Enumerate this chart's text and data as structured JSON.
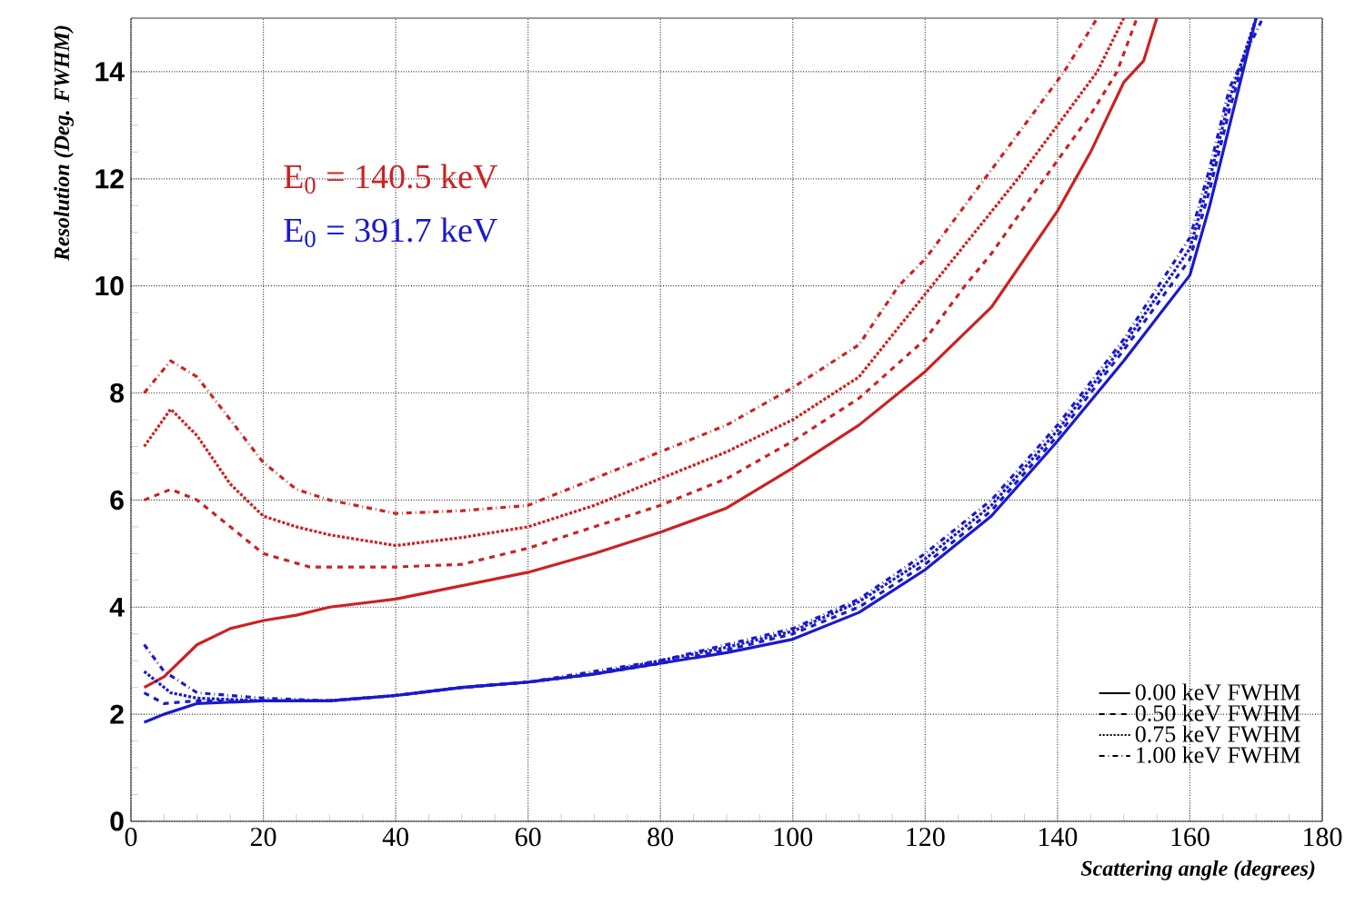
{
  "chart_data": {
    "type": "line",
    "xlabel": "Scattering angle (degrees)",
    "ylabel": "Resolution (Deg. FWHM)",
    "xlim": [
      0,
      180
    ],
    "ylim": [
      0,
      15
    ],
    "xticks": [
      0,
      20,
      40,
      60,
      80,
      100,
      120,
      140,
      160,
      180
    ],
    "yticks": [
      0,
      2,
      4,
      6,
      8,
      10,
      12,
      14
    ],
    "grid": true,
    "legend": "bottom right",
    "marker": "none",
    "annotations": [
      "E$_{0}$ = 140.5 keV",
      "E$_{0}$ = 391.7 keV"
    ],
    "series": [
      {
        "name": "0.00 keV FWHM",
        "color": "#cc2222",
        "line_style": "solid",
        "x": [
          2,
          5,
          10,
          15,
          20,
          25,
          30,
          40,
          50,
          60,
          70,
          80,
          90,
          100,
          110,
          120,
          130,
          140,
          145,
          150,
          153,
          155
        ],
        "values": [
          2.5,
          2.7,
          3.3,
          3.6,
          3.75,
          3.85,
          4.0,
          4.15,
          4.4,
          4.65,
          5.0,
          5.4,
          5.85,
          6.6,
          7.4,
          8.4,
          9.6,
          11.4,
          12.5,
          13.8,
          14.2,
          15
        ]
      },
      {
        "name": "0.50 keV FWHM",
        "color": "#cc2222",
        "line_style": "dashed",
        "x": [
          2,
          6,
          10,
          15,
          20,
          27,
          40,
          50,
          60,
          70,
          80,
          90,
          100,
          110,
          120,
          126,
          130,
          138,
          145,
          149,
          152
        ],
        "values": [
          6.0,
          6.2,
          6.0,
          5.5,
          5.0,
          4.75,
          4.75,
          4.8,
          5.1,
          5.5,
          5.9,
          6.4,
          7.1,
          7.9,
          9.0,
          10,
          10.6,
          12,
          13.2,
          14,
          15
        ]
      },
      {
        "name": "0.75 keV FWHM",
        "color": "#cc2222",
        "line_style": "dotted",
        "x": [
          2,
          6,
          10,
          15,
          20,
          25,
          30,
          40,
          50,
          60,
          70,
          80,
          90,
          100,
          110,
          121,
          134,
          146,
          150
        ],
        "values": [
          7.0,
          7.7,
          7.2,
          6.3,
          5.7,
          5.5,
          5.35,
          5.15,
          5.3,
          5.5,
          5.9,
          6.4,
          6.9,
          7.5,
          8.3,
          10,
          12,
          14,
          15
        ]
      },
      {
        "name": "1.00 keV FWHM",
        "color": "#cc2222",
        "line_style": "dashdotted",
        "x": [
          2,
          6,
          10,
          15,
          20,
          25,
          30,
          40,
          50,
          60,
          70,
          80,
          90,
          100,
          110,
          116,
          120,
          129,
          141,
          146
        ],
        "values": [
          8.0,
          8.6,
          8.3,
          7.5,
          6.7,
          6.2,
          6.0,
          5.75,
          5.8,
          5.9,
          6.4,
          6.9,
          7.4,
          8.1,
          8.9,
          10,
          10.5,
          12,
          14,
          15
        ]
      },
      {
        "color": "#1a1acc",
        "line_style": "solid",
        "x": [
          2,
          5,
          10,
          20,
          30,
          40,
          50,
          60,
          70,
          80,
          90,
          100,
          110,
          120,
          130,
          140,
          150,
          160,
          163,
          166,
          170
        ],
        "values": [
          1.85,
          2.0,
          2.2,
          2.25,
          2.25,
          2.35,
          2.5,
          2.6,
          2.75,
          2.95,
          3.15,
          3.4,
          3.9,
          4.7,
          5.7,
          7.1,
          8.6,
          10.2,
          11.5,
          13,
          15
        ]
      },
      {
        "color": "#1a1acc",
        "line_style": "dashed",
        "x": [
          2,
          5,
          10,
          20,
          30,
          40,
          50,
          60,
          70,
          80,
          90,
          100,
          110,
          120,
          130,
          140,
          150,
          160,
          163,
          166,
          170
        ],
        "values": [
          2.4,
          2.2,
          2.25,
          2.25,
          2.25,
          2.35,
          2.5,
          2.6,
          2.75,
          2.95,
          3.2,
          3.5,
          4.0,
          4.8,
          5.8,
          7.2,
          8.8,
          10.5,
          11.8,
          13.3,
          15
        ]
      },
      {
        "color": "#1a1acc",
        "line_style": "dotted",
        "x": [
          2,
          6,
          10,
          20,
          30,
          40,
          50,
          60,
          70,
          80,
          90,
          100,
          110,
          120,
          130,
          140,
          150,
          160,
          163,
          166,
          170
        ],
        "values": [
          2.8,
          2.4,
          2.3,
          2.25,
          2.25,
          2.35,
          2.5,
          2.6,
          2.75,
          3.0,
          3.25,
          3.55,
          4.1,
          4.9,
          5.9,
          7.3,
          8.9,
          10.7,
          12,
          13.5,
          15
        ]
      },
      {
        "color": "#1a1acc",
        "line_style": "dashdotted",
        "x": [
          2,
          5,
          10,
          20,
          30,
          40,
          50,
          60,
          70,
          80,
          90,
          100,
          110,
          120,
          130,
          140,
          150,
          160,
          163,
          166,
          171
        ],
        "values": [
          3.3,
          2.8,
          2.4,
          2.3,
          2.25,
          2.35,
          2.5,
          2.6,
          2.8,
          3.0,
          3.3,
          3.6,
          4.15,
          5.0,
          6.0,
          7.4,
          9.0,
          10.9,
          12.2,
          13.7,
          15
        ]
      }
    ]
  }
}
